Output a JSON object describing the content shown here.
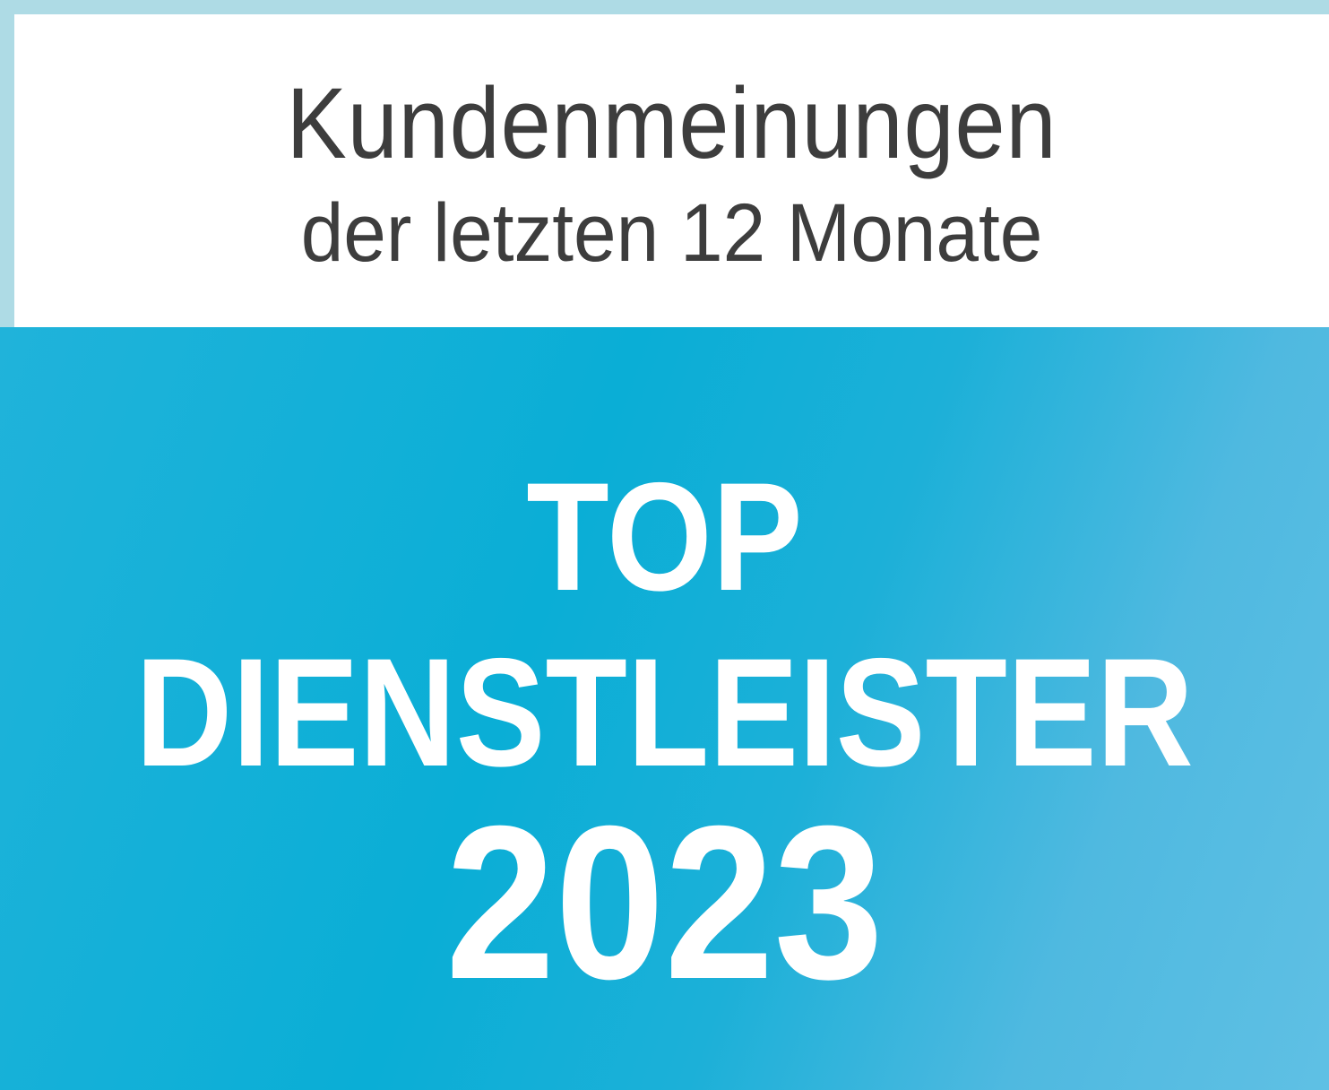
{
  "header": {
    "line1": "Kundenmeinungen",
    "line2": "der letzten 12 Monate"
  },
  "award": {
    "line1": "TOP",
    "line2": "DIENSTLEISTER",
    "year": "2023"
  },
  "colors": {
    "frame": "#aedbe5",
    "accent": "#0aaed6",
    "text_dark": "#3d3d3d",
    "text_light": "#ffffff"
  }
}
